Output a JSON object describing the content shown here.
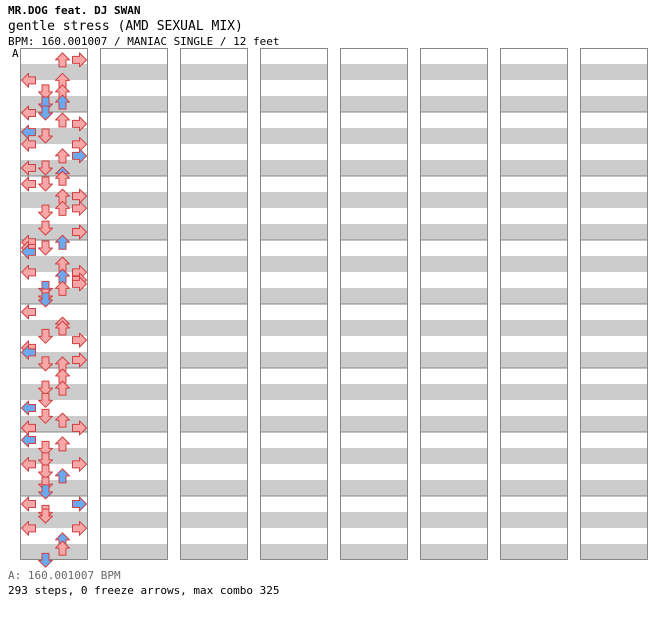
{
  "header": {
    "artist": "MR.DOG feat. DJ SWAN",
    "title": "gentle stress (AMD SEXUAL MIX)",
    "info": "BPM: 160.001007 / MANIAC SINGLE / 12 feet"
  },
  "section_marker": "A",
  "footer": {
    "bpm_line": "A: 160.001007 BPM",
    "stats_line": "293 steps, 0 freeze arrows, max combo 325"
  },
  "colors": {
    "quarter": "#f7a7a7",
    "eighth": "#6aa9ee",
    "sixteenth": "#f3b6f3",
    "other": "#f2ec40",
    "stroke": "#d04040",
    "stripe": "#cccccc",
    "frame": "#888888"
  },
  "chart_data": {
    "type": "table",
    "title": "gentle stress (AMD SEXUAL MIX)",
    "difficulty": "MANIAC",
    "mode": "SINGLE",
    "feet": 12,
    "bpm": 160.001007,
    "steps": 293,
    "freeze_arrows": 0,
    "max_combo": 325,
    "lanes": [
      "left",
      "down",
      "up",
      "right"
    ],
    "columns": 8,
    "measures_per_column": 8,
    "notes": [
      [
        0,
        0.06,
        2,
        0
      ],
      [
        0,
        0.06,
        3,
        0
      ],
      [
        0,
        0.38,
        0,
        0
      ],
      [
        0,
        0.38,
        2,
        0
      ],
      [
        0,
        0.56,
        1,
        0
      ],
      [
        0,
        0.56,
        2,
        0
      ],
      [
        0,
        0.72,
        2,
        1
      ],
      [
        0,
        0.75,
        1,
        1
      ],
      [
        0,
        0.89,
        0,
        0
      ],
      [
        0,
        0.89,
        1,
        1
      ],
      [
        0,
        1.0,
        2,
        0
      ],
      [
        0,
        1.06,
        3,
        0
      ],
      [
        0,
        1.19,
        0,
        1
      ],
      [
        0,
        1.25,
        1,
        0
      ],
      [
        0,
        1.38,
        0,
        0
      ],
      [
        0,
        1.38,
        3,
        0
      ],
      [
        0,
        1.56,
        2,
        0
      ],
      [
        0,
        1.56,
        3,
        1
      ],
      [
        0,
        1.75,
        0,
        0
      ],
      [
        0,
        1.75,
        1,
        0
      ],
      [
        0,
        1.84,
        2,
        1
      ],
      [
        0,
        1.91,
        2,
        0
      ],
      [
        0,
        2.0,
        0,
        0
      ],
      [
        0,
        2.0,
        1,
        0
      ],
      [
        0,
        2.19,
        2,
        0
      ],
      [
        0,
        2.19,
        3,
        0
      ],
      [
        0,
        2.38,
        2,
        0
      ],
      [
        0,
        2.38,
        3,
        0
      ],
      [
        0,
        2.44,
        1,
        0
      ],
      [
        0,
        2.69,
        1,
        0
      ],
      [
        0,
        2.75,
        3,
        0
      ],
      [
        0,
        2.91,
        0,
        0
      ],
      [
        0,
        2.91,
        2,
        1
      ],
      [
        0,
        3.0,
        0,
        0
      ],
      [
        0,
        3.0,
        1,
        0
      ],
      [
        0,
        3.06,
        0,
        1
      ],
      [
        0,
        3.25,
        2,
        0
      ],
      [
        0,
        3.38,
        0,
        0
      ],
      [
        0,
        3.38,
        3,
        0
      ],
      [
        0,
        3.44,
        2,
        1
      ],
      [
        0,
        3.5,
        3,
        0
      ],
      [
        0,
        3.56,
        3,
        0
      ],
      [
        0,
        3.63,
        1,
        1
      ],
      [
        0,
        3.63,
        2,
        0
      ],
      [
        0,
        3.75,
        1,
        0
      ],
      [
        0,
        3.81,
        1,
        1
      ],
      [
        0,
        4.0,
        0,
        0
      ],
      [
        0,
        4.19,
        2,
        0
      ],
      [
        0,
        4.25,
        2,
        0
      ],
      [
        0,
        4.38,
        1,
        0
      ],
      [
        0,
        4.44,
        3,
        0
      ],
      [
        0,
        4.56,
        0,
        0
      ],
      [
        0,
        4.63,
        0,
        1
      ],
      [
        0,
        4.75,
        3,
        0
      ],
      [
        0,
        4.81,
        1,
        0
      ],
      [
        0,
        4.81,
        2,
        0
      ],
      [
        0,
        5.0,
        2,
        0
      ],
      [
        0,
        5.19,
        1,
        0
      ],
      [
        0,
        5.19,
        2,
        0
      ],
      [
        0,
        5.38,
        1,
        0
      ],
      [
        0,
        5.5,
        0,
        1
      ],
      [
        0,
        5.63,
        1,
        0
      ],
      [
        0,
        5.69,
        2,
        0
      ],
      [
        0,
        5.81,
        0,
        0
      ],
      [
        0,
        5.81,
        3,
        0
      ],
      [
        0,
        6.0,
        0,
        1
      ],
      [
        0,
        6.06,
        2,
        0
      ],
      [
        0,
        6.13,
        1,
        0
      ],
      [
        0,
        6.31,
        1,
        0
      ],
      [
        0,
        6.38,
        0,
        0
      ],
      [
        0,
        6.38,
        3,
        0
      ],
      [
        0,
        6.5,
        1,
        0
      ],
      [
        0,
        6.56,
        2,
        1
      ],
      [
        0,
        6.69,
        1,
        0
      ],
      [
        0,
        6.81,
        1,
        1
      ],
      [
        0,
        7.0,
        0,
        0
      ],
      [
        0,
        7.0,
        3,
        1
      ],
      [
        0,
        7.13,
        1,
        0
      ],
      [
        0,
        7.19,
        1,
        0
      ],
      [
        0,
        7.38,
        0,
        0
      ],
      [
        0,
        7.38,
        3,
        0
      ],
      [
        0,
        7.56,
        2,
        1
      ],
      [
        0,
        7.69,
        2,
        0
      ],
      [
        0,
        7.88,
        1,
        1
      ]
    ]
  }
}
